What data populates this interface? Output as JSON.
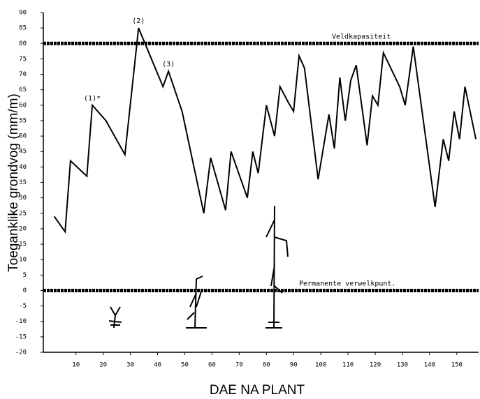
{
  "chart_data": {
    "type": "line",
    "x_label": "DAE NA PLANT",
    "y_label": "Toeganklike grondvog (mm/m)",
    "x": [
      2,
      6,
      8,
      14,
      16,
      21,
      28,
      33,
      42,
      44,
      49,
      57,
      59.5,
      65,
      67,
      73,
      75,
      77,
      80,
      83,
      85,
      88,
      90,
      92,
      94,
      99,
      103,
      105,
      107,
      109,
      111,
      113,
      117,
      119,
      121,
      123,
      129,
      131,
      134,
      142,
      145,
      147,
      149,
      151,
      153,
      157
    ],
    "values": [
      24,
      19,
      42,
      37,
      60,
      55,
      44,
      85,
      66,
      71,
      58,
      25,
      43,
      26,
      45,
      30,
      45,
      38,
      60,
      50,
      66,
      61,
      58,
      76,
      72,
      36,
      57,
      46,
      69,
      55,
      68,
      73,
      47,
      63,
      60,
      77,
      66,
      60,
      79,
      27,
      49,
      42,
      58,
      49,
      66,
      49
    ],
    "color": "#000000",
    "xlim": [
      -2,
      158
    ],
    "xticks": [
      10,
      20,
      30,
      40,
      50,
      60,
      70,
      80,
      90,
      100,
      110,
      120,
      130,
      140,
      150
    ],
    "ylim": [
      -20,
      90
    ],
    "yticks": [
      -20,
      -15,
      -10,
      -5,
      0,
      5,
      10,
      15,
      20,
      25,
      30,
      35,
      40,
      45,
      50,
      55,
      60,
      65,
      70,
      75,
      80,
      85,
      90
    ],
    "reference_lines": [
      {
        "value": 80,
        "label": "Veldkapasiteit"
      },
      {
        "value": 0,
        "label": "Permanente verwelkpunt."
      }
    ],
    "annotations": [
      {
        "text": "(1)*",
        "x": 16,
        "y": 60
      },
      {
        "text": "(2)",
        "x": 33,
        "y": 85
      },
      {
        "text": "(3)",
        "x": 44,
        "y": 71
      }
    ]
  }
}
